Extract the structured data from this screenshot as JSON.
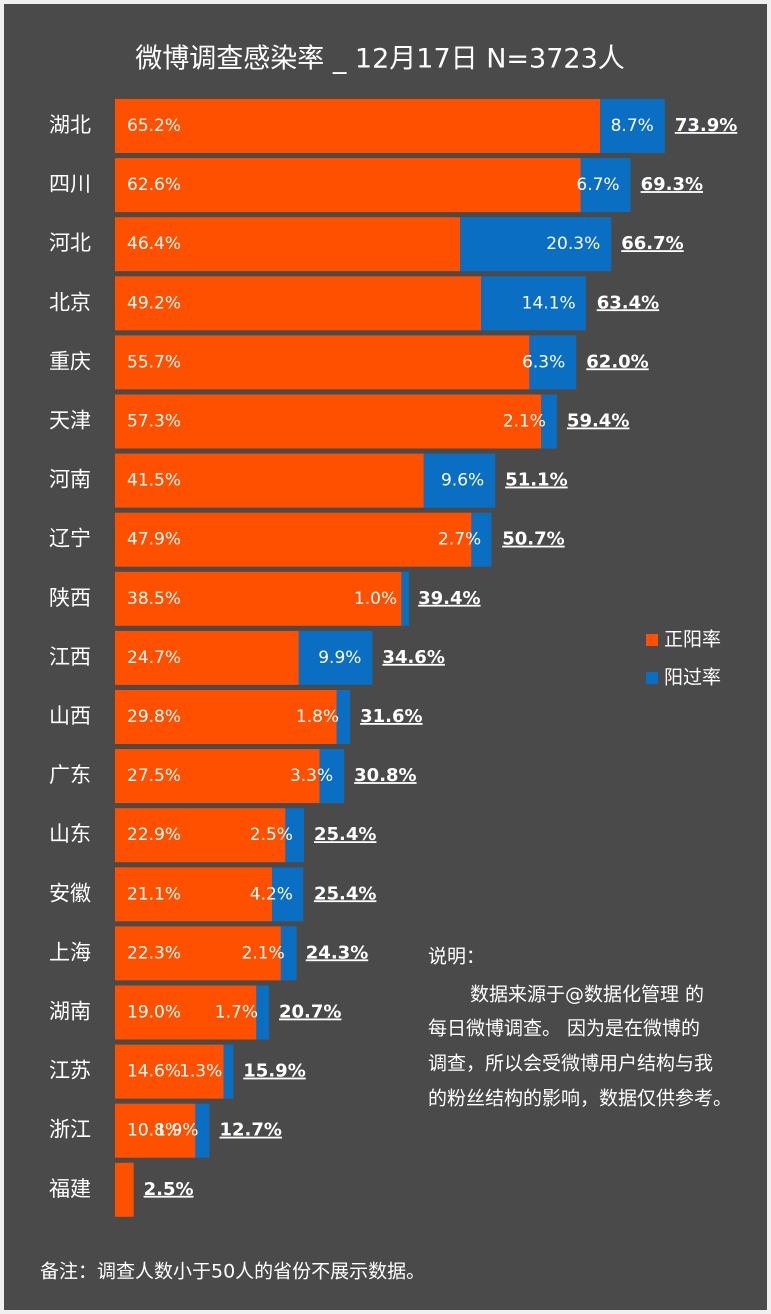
{
  "chart_data": {
    "type": "stacked-barh",
    "title": "微博调查感染率 _ 12月17日 N=3723人",
    "categories": [
      "湖北",
      "四川",
      "河北",
      "北京",
      "重庆",
      "天津",
      "河南",
      "辽宁",
      "陕西",
      "江西",
      "山西",
      "广东",
      "山东",
      "安徽",
      "上海",
      "湖南",
      "江苏",
      "浙江",
      "福建"
    ],
    "series": [
      {
        "name": "正阳率",
        "color": "#ff5000",
        "values": [
          65.2,
          62.6,
          46.4,
          49.2,
          55.7,
          57.3,
          41.5,
          47.9,
          38.5,
          24.7,
          29.8,
          27.5,
          22.9,
          21.1,
          22.3,
          19.0,
          14.6,
          10.8,
          2.5
        ],
        "value_labels": [
          "65.2%",
          "62.6%",
          "46.4%",
          "49.2%",
          "55.7%",
          "57.3%",
          "41.5%",
          "47.9%",
          "38.5%",
          "24.7%",
          "29.8%",
          "27.5%",
          "22.9%",
          "21.1%",
          "22.3%",
          "19.0%",
          "14.6%",
          "10.8%",
          null
        ]
      },
      {
        "name": "阳过率",
        "color": "#0a6fc2",
        "values": [
          8.7,
          6.7,
          20.3,
          14.1,
          6.3,
          2.1,
          9.6,
          2.7,
          1.0,
          9.9,
          1.8,
          3.3,
          2.5,
          4.2,
          2.1,
          1.7,
          1.3,
          1.9,
          null
        ],
        "value_labels": [
          "8.7%",
          "6.7%",
          "20.3%",
          "14.1%",
          "6.3%",
          "2.1%",
          "9.6%",
          "2.7%",
          "1.0%",
          "9.9%",
          "1.8%",
          "3.3%",
          "2.5%",
          "4.2%",
          "2.1%",
          "1.7%",
          "1.3%",
          "1.9%",
          null
        ]
      }
    ],
    "totals": [
      73.9,
      69.3,
      66.7,
      63.4,
      62.0,
      59.4,
      51.1,
      50.7,
      39.4,
      34.6,
      31.6,
      30.8,
      25.4,
      25.4,
      24.3,
      20.7,
      15.9,
      12.7,
      2.5
    ],
    "total_labels": [
      "73.9%",
      "69.3%",
      "66.7%",
      "63.4%",
      "62.0%",
      "59.4%",
      "51.1%",
      "50.7%",
      "39.4%",
      "34.6%",
      "31.6%",
      "30.8%",
      "25.4%",
      "25.4%",
      "24.3%",
      "20.7%",
      "15.9%",
      "12.7%",
      "2.5%"
    ],
    "legend": "right",
    "note_title": "说明：",
    "note_lines": [
      "数据来源于@数据化管理 的",
      "每日微博调查。 因为是在微博的",
      "调查，所以会受微博用户结构与我",
      "的粉丝结构的影响，数据仅供参考。"
    ],
    "footnote": "备注：调查人数小于50人的省份不展示数据。"
  }
}
